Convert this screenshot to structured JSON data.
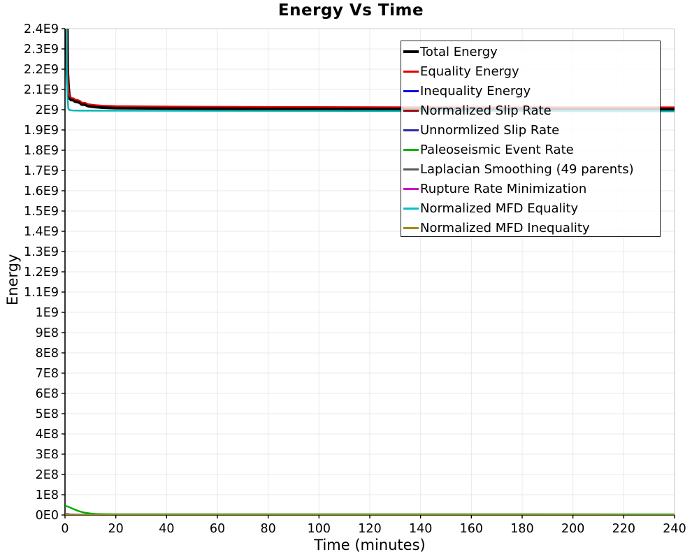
{
  "title": "Energy Vs Time",
  "x_axis": {
    "title": "Time (minutes)"
  },
  "y_axis": {
    "title": "Energy"
  },
  "legend": {
    "position": "top-right",
    "entries": [
      {
        "label": "Total Energy",
        "color": "#000000",
        "lw": 4
      },
      {
        "label": "Equality Energy",
        "color": "#e60000",
        "lw": 3
      },
      {
        "label": "Inequality Energy",
        "color": "#0f0fe1",
        "lw": 3
      },
      {
        "label": "Normalized Slip Rate",
        "color": "#9b1010",
        "lw": 3
      },
      {
        "label": "Unnormlized Slip Rate",
        "color": "#2b2b9e",
        "lw": 3
      },
      {
        "label": "Paleoseismic Event Rate",
        "color": "#00b200",
        "lw": 3
      },
      {
        "label": "Laplacian Smoothing (49 parents)",
        "color": "#5a5a5a",
        "lw": 3
      },
      {
        "label": "Rupture Rate Minimization",
        "color": "#cf00cf",
        "lw": 3
      },
      {
        "label": "Normalized MFD Equality",
        "color": "#00c0c8",
        "lw": 3
      },
      {
        "label": "Normalized MFD Inequality",
        "color": "#a18a00",
        "lw": 3
      }
    ]
  },
  "chart_data": {
    "type": "line",
    "title": "Energy Vs Time",
    "xlabel": "Time (minutes)",
    "ylabel": "Energy",
    "xlim": [
      0,
      240
    ],
    "ylim": [
      0,
      2400000000.0
    ],
    "grid": true,
    "legend_position": "top-right",
    "x_ticks": [
      0,
      20,
      40,
      60,
      80,
      100,
      120,
      140,
      160,
      180,
      200,
      220,
      240
    ],
    "y_tick_step": 100000000.0,
    "y_tick_labels": [
      "2.4E9",
      "2.3E9",
      "2.2E9",
      "2.1E9",
      "2E9",
      "1.9E9",
      "1.8E9",
      "1.7E9",
      "1.6E9",
      "1.5E9",
      "1.4E9",
      "1.3E9",
      "1.2E9",
      "1.1E9",
      "1E9",
      "9E8",
      "8E8",
      "7E8",
      "6E8",
      "5E8",
      "4E8",
      "3E8",
      "2E8",
      "1E8",
      "0E0"
    ],
    "series": [
      {
        "name": "Laplacian Smoothing (49 parents)",
        "color": "#5a5a5a",
        "width": 2,
        "points": [
          [
            0,
            6000000.0
          ],
          [
            2,
            4000000.0
          ],
          [
            5,
            3000000.0
          ],
          [
            10,
            2600000.0
          ],
          [
            240,
            2400000.0
          ]
        ]
      },
      {
        "name": "Normalized Slip Rate",
        "color": "#8b0000",
        "width": 2,
        "points": [
          [
            0,
            4500000.0
          ],
          [
            1,
            2500000.0
          ],
          [
            4,
            1800000.0
          ],
          [
            240,
            1600000.0
          ]
        ]
      },
      {
        "name": "Unnormlized Slip Rate",
        "color": "#2b2b9e",
        "width": 2,
        "points": [
          [
            0,
            2000000.0
          ],
          [
            2,
            1000000.0
          ],
          [
            240,
            800000.0
          ]
        ]
      },
      {
        "name": "Inequality Energy",
        "color": "#0f0fe1",
        "width": 2,
        "points": [
          [
            0,
            3000000.0
          ],
          [
            1,
            1200000.0
          ],
          [
            240,
            500000.0
          ]
        ]
      },
      {
        "name": "Rupture Rate Minimization",
        "color": "#cf00cf",
        "width": 2,
        "points": [
          [
            0,
            1500000.0
          ],
          [
            240,
            400000.0
          ]
        ]
      },
      {
        "name": "Paleoseismic Event Rate",
        "color": "#00b200",
        "width": 2.5,
        "points": [
          [
            0,
            45000000.0
          ],
          [
            1,
            42000000.0
          ],
          [
            2,
            37000000.0
          ],
          [
            3,
            31000000.0
          ],
          [
            4,
            26000000.0
          ],
          [
            5,
            21000000.0
          ],
          [
            6,
            17000000.0
          ],
          [
            7,
            13500000.0
          ],
          [
            8,
            11000000.0
          ],
          [
            9,
            9000000.0
          ],
          [
            10,
            7500000.0
          ],
          [
            11,
            6200000.0
          ],
          [
            12,
            5200000.0
          ],
          [
            14,
            4400000.0
          ],
          [
            16,
            3900000.0
          ],
          [
            20,
            3600000.0
          ],
          [
            30,
            3400000.0
          ],
          [
            240,
            3200000.0
          ]
        ]
      },
      {
        "name": "Normalized MFD Inequality",
        "color": "#a18a00",
        "width": 2.2,
        "points": [
          [
            0,
            1000000.0
          ],
          [
            240,
            700000.0
          ]
        ]
      },
      {
        "name": "Total Energy",
        "color": "#000000",
        "width": 5,
        "points": [
          [
            0.35,
            3000000000.0
          ],
          [
            0.9,
            2200000000.0
          ],
          [
            1.2,
            2120000000.0
          ],
          [
            1.5,
            2075000000.0
          ],
          [
            2,
            2055000000.0
          ],
          [
            2.5,
            2050000000.0
          ],
          [
            3.5,
            2048000000.0
          ],
          [
            4,
            2042000000.0
          ],
          [
            5,
            2040000000.0
          ],
          [
            6,
            2035000000.0
          ],
          [
            6.5,
            2028000000.0
          ],
          [
            8,
            2026000000.0
          ],
          [
            9,
            2020000000.0
          ],
          [
            10,
            2018000000.0
          ],
          [
            12,
            2015000000.0
          ],
          [
            15,
            2012000000.0
          ],
          [
            20,
            2010000000.0
          ],
          [
            40,
            2008000000.0
          ],
          [
            80,
            2006000000.0
          ],
          [
            160,
            2004000000.0
          ],
          [
            240,
            2004000000.0
          ]
        ]
      },
      {
        "name": "Equality Energy",
        "color": "#e60000",
        "width": 2.2,
        "points": [
          [
            0.35,
            3000000000.0
          ],
          [
            0.9,
            2208000000.0
          ],
          [
            1.2,
            2128000000.0
          ],
          [
            1.5,
            2083000000.0
          ],
          [
            2,
            2063000000.0
          ],
          [
            2.5,
            2058000000.0
          ],
          [
            3.5,
            2056000000.0
          ],
          [
            4,
            2050000000.0
          ],
          [
            5,
            2048000000.0
          ],
          [
            6,
            2043000000.0
          ],
          [
            6.5,
            2036000000.0
          ],
          [
            8,
            2034000000.0
          ],
          [
            9,
            2028000000.0
          ],
          [
            10,
            2026000000.0
          ],
          [
            12,
            2023000000.0
          ],
          [
            15,
            2020000000.0
          ],
          [
            20,
            2018000000.0
          ],
          [
            40,
            2016000000.0
          ],
          [
            80,
            2014000000.0
          ],
          [
            160,
            2012000000.0
          ],
          [
            240,
            2012000000.0
          ]
        ]
      },
      {
        "name": "Normalized MFD Equality",
        "color": "#00b7b7",
        "width": 2.4,
        "points": [
          [
            0.3,
            3000000000.0
          ],
          [
            0.7,
            2200000000.0
          ],
          [
            1.0,
            2060000000.0
          ],
          [
            1.3,
            2005000000.0
          ],
          [
            1.8,
            1998000000.0
          ],
          [
            3,
            1996000000.0
          ],
          [
            6,
            1995000000.0
          ],
          [
            240,
            1992000000.0
          ]
        ]
      }
    ]
  }
}
